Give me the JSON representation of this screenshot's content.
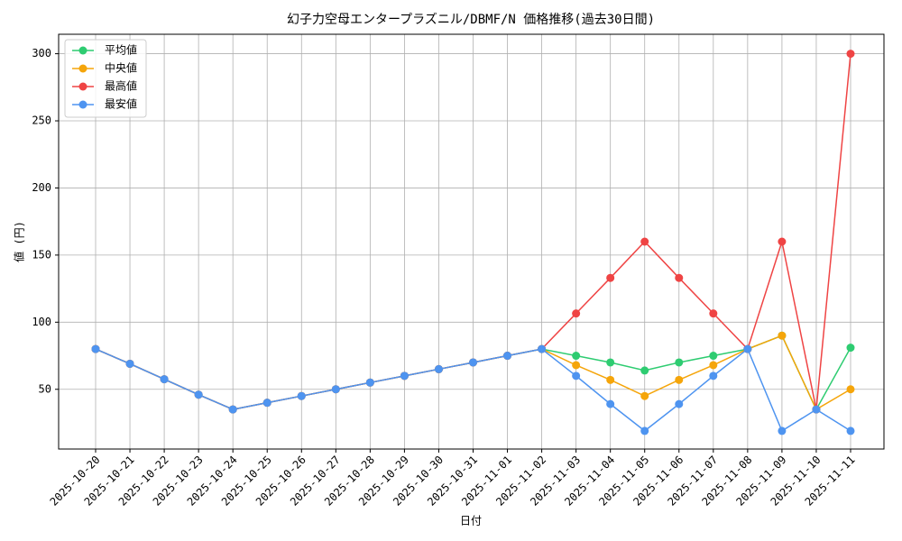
{
  "chart_data": {
    "type": "line",
    "title": "幻子力空母エンタープラズニル/DBMF/N 価格推移(過去30日間)",
    "x_label": "日付",
    "y_label": "値 (円)",
    "categories": [
      "2025-10-20",
      "2025-10-21",
      "2025-10-22",
      "2025-10-23",
      "2025-10-24",
      "2025-10-25",
      "2025-10-26",
      "2025-10-27",
      "2025-10-28",
      "2025-10-29",
      "2025-10-30",
      "2025-10-31",
      "2025-11-01",
      "2025-11-02",
      "2025-11-03",
      "2025-11-04",
      "2025-11-05",
      "2025-11-06",
      "2025-11-07",
      "2025-11-08",
      "2025-11-09",
      "2025-11-10",
      "2025-11-11"
    ],
    "series": [
      {
        "name": "平均値",
        "color": "#2ecc71",
        "values": [
          80,
          69,
          57.5,
          46,
          35,
          40,
          45,
          50,
          55,
          60,
          65,
          70,
          75,
          80,
          75,
          70,
          64,
          70,
          75,
          80,
          90,
          35,
          81
        ]
      },
      {
        "name": "中央値",
        "color": "#f5a50a",
        "values": [
          80,
          69,
          57.5,
          46,
          35,
          40,
          45,
          50,
          55,
          60,
          65,
          70,
          75,
          80,
          68,
          57,
          45,
          57,
          68,
          80,
          90,
          35,
          50
        ]
      },
      {
        "name": "最高値",
        "color": "#ef4444",
        "values": [
          80,
          69,
          57.5,
          46,
          35,
          40,
          45,
          50,
          55,
          60,
          65,
          70,
          75,
          80,
          106.5,
          133,
          160,
          133,
          106.5,
          80,
          160,
          35,
          300
        ]
      },
      {
        "name": "最安値",
        "color": "#4e94f0",
        "values": [
          80,
          69,
          57.5,
          46,
          35,
          40,
          45,
          50,
          55,
          60,
          65,
          70,
          75,
          80,
          60,
          39,
          19,
          39,
          60,
          80,
          19,
          35,
          19
        ]
      }
    ],
    "ylim": [
      5.5,
      314.5
    ],
    "yticks": [
      50,
      100,
      150,
      200,
      250,
      300
    ],
    "grid": true,
    "legend": "upper left"
  }
}
